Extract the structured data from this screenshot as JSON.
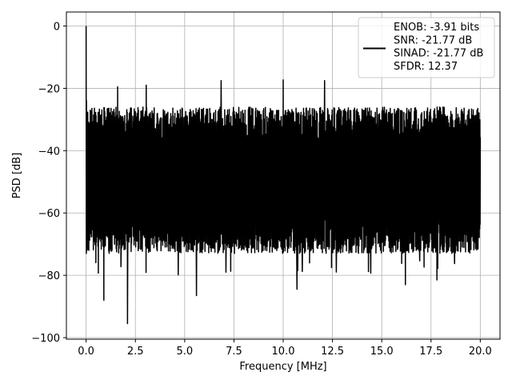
{
  "chart_data": {
    "type": "line",
    "title": "",
    "xlabel": "Frequency [MHz]",
    "ylabel": "PSD [dB]",
    "xlim": [
      -1.0,
      21.0
    ],
    "ylim": [
      -100.5,
      4.5
    ],
    "xticks": [
      0.0,
      2.5,
      5.0,
      7.5,
      10.0,
      12.5,
      15.0,
      17.5,
      20.0
    ],
    "xtick_labels": [
      "0.0",
      "2.5",
      "5.0",
      "7.5",
      "10.0",
      "12.5",
      "15.0",
      "17.5",
      "20.0"
    ],
    "yticks": [
      0,
      -20,
      -40,
      -60,
      -80,
      -100
    ],
    "ytick_labels": [
      "0",
      "−20",
      "−40",
      "−60",
      "−80",
      "−100"
    ],
    "grid": true,
    "legend_position": "top-right",
    "legend_lines": [
      "ENOB: -3.91 bits",
      "SNR: -21.77 dB",
      "SINAD: -21.77 dB",
      "SFDR: 12.37"
    ],
    "line_color": "#000000",
    "series": [
      {
        "x_range": [
          0.0,
          20.0
        ],
        "noise_band_db": [
          -26,
          -73
        ],
        "noise_band_center_db": -50,
        "peaks": [
          {
            "x": 0.0,
            "y": 0
          },
          {
            "x": 0.02,
            "y": -24
          },
          {
            "x": 1.6,
            "y": -19.5
          },
          {
            "x": 3.05,
            "y": -19
          },
          {
            "x": 6.85,
            "y": -17.5
          },
          {
            "x": 10.0,
            "y": -17.3
          },
          {
            "x": 12.1,
            "y": -17.5
          }
        ],
        "troughs": [
          {
            "x": 0.9,
            "y": -88
          },
          {
            "x": 2.1,
            "y": -95.5
          },
          {
            "x": 5.6,
            "y": -86.5
          },
          {
            "x": 10.7,
            "y": -84.5
          },
          {
            "x": 16.2,
            "y": -83
          },
          {
            "x": 17.8,
            "y": -81.5
          }
        ]
      }
    ]
  }
}
